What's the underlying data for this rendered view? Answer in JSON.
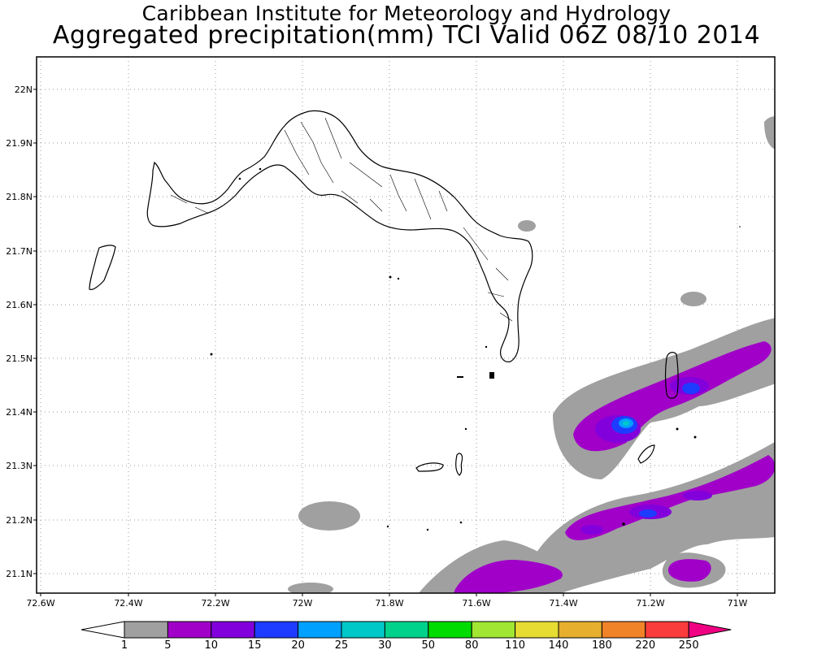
{
  "title_line1": "Caribbean Institute for Meteorology and Hydrology",
  "title_line2": "Aggregated precipitation(mm) TCI Valid 06Z 08/10 2014",
  "lat_labels": [
    "22N",
    "21.9N",
    "21.8N",
    "21.7N",
    "21.6N",
    "21.5N",
    "21.4N",
    "21.3N",
    "21.2N",
    "21.1N"
  ],
  "lon_labels": [
    "72.6W",
    "72.4W",
    "72.2W",
    "72W",
    "71.8W",
    "71.6W",
    "71.4W",
    "71.2W",
    "71W"
  ],
  "colorbar": {
    "labels": [
      "1",
      "5",
      "10",
      "15",
      "20",
      "25",
      "30",
      "50",
      "80",
      "110",
      "140",
      "180",
      "220",
      "250"
    ],
    "colors": [
      "#a0a0a0",
      "#a000c8",
      "#8200dc",
      "#1e3cff",
      "#00a0ff",
      "#00c8c8",
      "#00d28c",
      "#00dc00",
      "#a0e632",
      "#e6dc32",
      "#e6af2d",
      "#f08228",
      "#fa3c3c",
      "#f00082"
    ]
  },
  "map": {
    "lon_range": [
      -72.6,
      -70.9
    ],
    "lat_range": [
      21.07,
      22.07
    ],
    "grid": true,
    "region": "Turks and Caicos Islands"
  }
}
